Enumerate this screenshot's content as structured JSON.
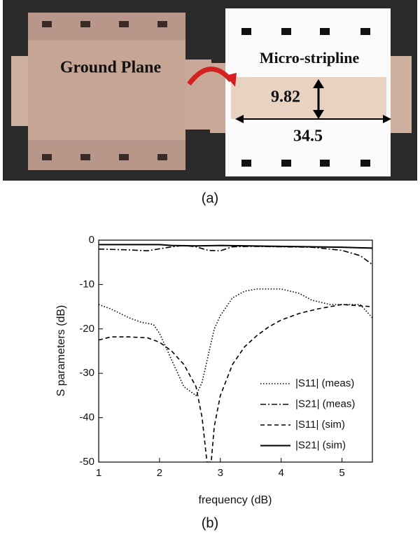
{
  "photo": {
    "left_label": "Ground Plane",
    "right_label": "Micro-stripline",
    "width_dim": "9.82",
    "length_dim": "34.5",
    "caption": "(a)"
  },
  "chart_data": {
    "type": "line",
    "caption": "(b)",
    "x_label": "frequency (dB)",
    "y_label": "S parameters (dB)",
    "xlim": [
      1,
      5.5
    ],
    "xticks": [
      1,
      2,
      3,
      4,
      5
    ],
    "ylim": [
      -50,
      0
    ],
    "yticks": [
      0,
      -10,
      -20,
      -30,
      -40,
      -50
    ],
    "legend": "lower right",
    "series": [
      {
        "name": "|S11| (meas)",
        "color": "#000000",
        "dash": "dotted",
        "x": [
          1,
          1.2,
          1.5,
          1.7,
          1.9,
          2.0,
          2.2,
          2.4,
          2.6,
          2.7,
          2.8,
          2.9,
          3.0,
          3.2,
          3.4,
          3.6,
          4.0,
          4.3,
          4.5,
          4.8,
          5.0,
          5.3,
          5.5
        ],
        "values": [
          -14.5,
          -15.5,
          -17.5,
          -18.5,
          -19,
          -21,
          -27,
          -33,
          -35,
          -32,
          -26,
          -20,
          -17,
          -13,
          -11.5,
          -11,
          -11,
          -12,
          -13.5,
          -14.5,
          -14.5,
          -14.5,
          -17.5
        ]
      },
      {
        "name": "|S21| (meas)",
        "color": "#000000",
        "dash": "dashdot",
        "x": [
          1,
          1.5,
          1.8,
          2.2,
          2.4,
          2.6,
          2.8,
          3.0,
          3.2,
          3.5,
          4.0,
          4.5,
          5.0,
          5.3,
          5.5
        ],
        "values": [
          -2,
          -2.2,
          -2.4,
          -1.5,
          -1.2,
          -1.5,
          -2.3,
          -2.4,
          -1.5,
          -1.4,
          -1.5,
          -1.6,
          -2.3,
          -3.5,
          -5.5
        ]
      },
      {
        "name": "|S11| (sim)",
        "color": "#000000",
        "dash": "dashed",
        "x": [
          1,
          1.2,
          1.5,
          1.8,
          2.0,
          2.2,
          2.4,
          2.6,
          2.7,
          2.78,
          2.85,
          2.9,
          3.0,
          3.2,
          3.4,
          3.6,
          3.8,
          4.0,
          4.3,
          4.6,
          5.0,
          5.5
        ],
        "values": [
          -22.5,
          -21.8,
          -21.8,
          -22,
          -23,
          -25,
          -28,
          -33,
          -40,
          -50,
          -50,
          -42,
          -35,
          -28,
          -24,
          -21.5,
          -19.5,
          -18,
          -16.5,
          -15.5,
          -14.5,
          -15
        ]
      },
      {
        "name": "|S21| (sim)",
        "color": "#000000",
        "dash": "solid",
        "x": [
          1,
          2,
          2.2,
          2.6,
          3,
          3.5,
          4,
          4.5,
          5,
          5.5
        ],
        "values": [
          -1,
          -1,
          -1.2,
          -1.3,
          -1.2,
          -1.3,
          -1.4,
          -1.5,
          -1.6,
          -1.8
        ]
      }
    ]
  }
}
